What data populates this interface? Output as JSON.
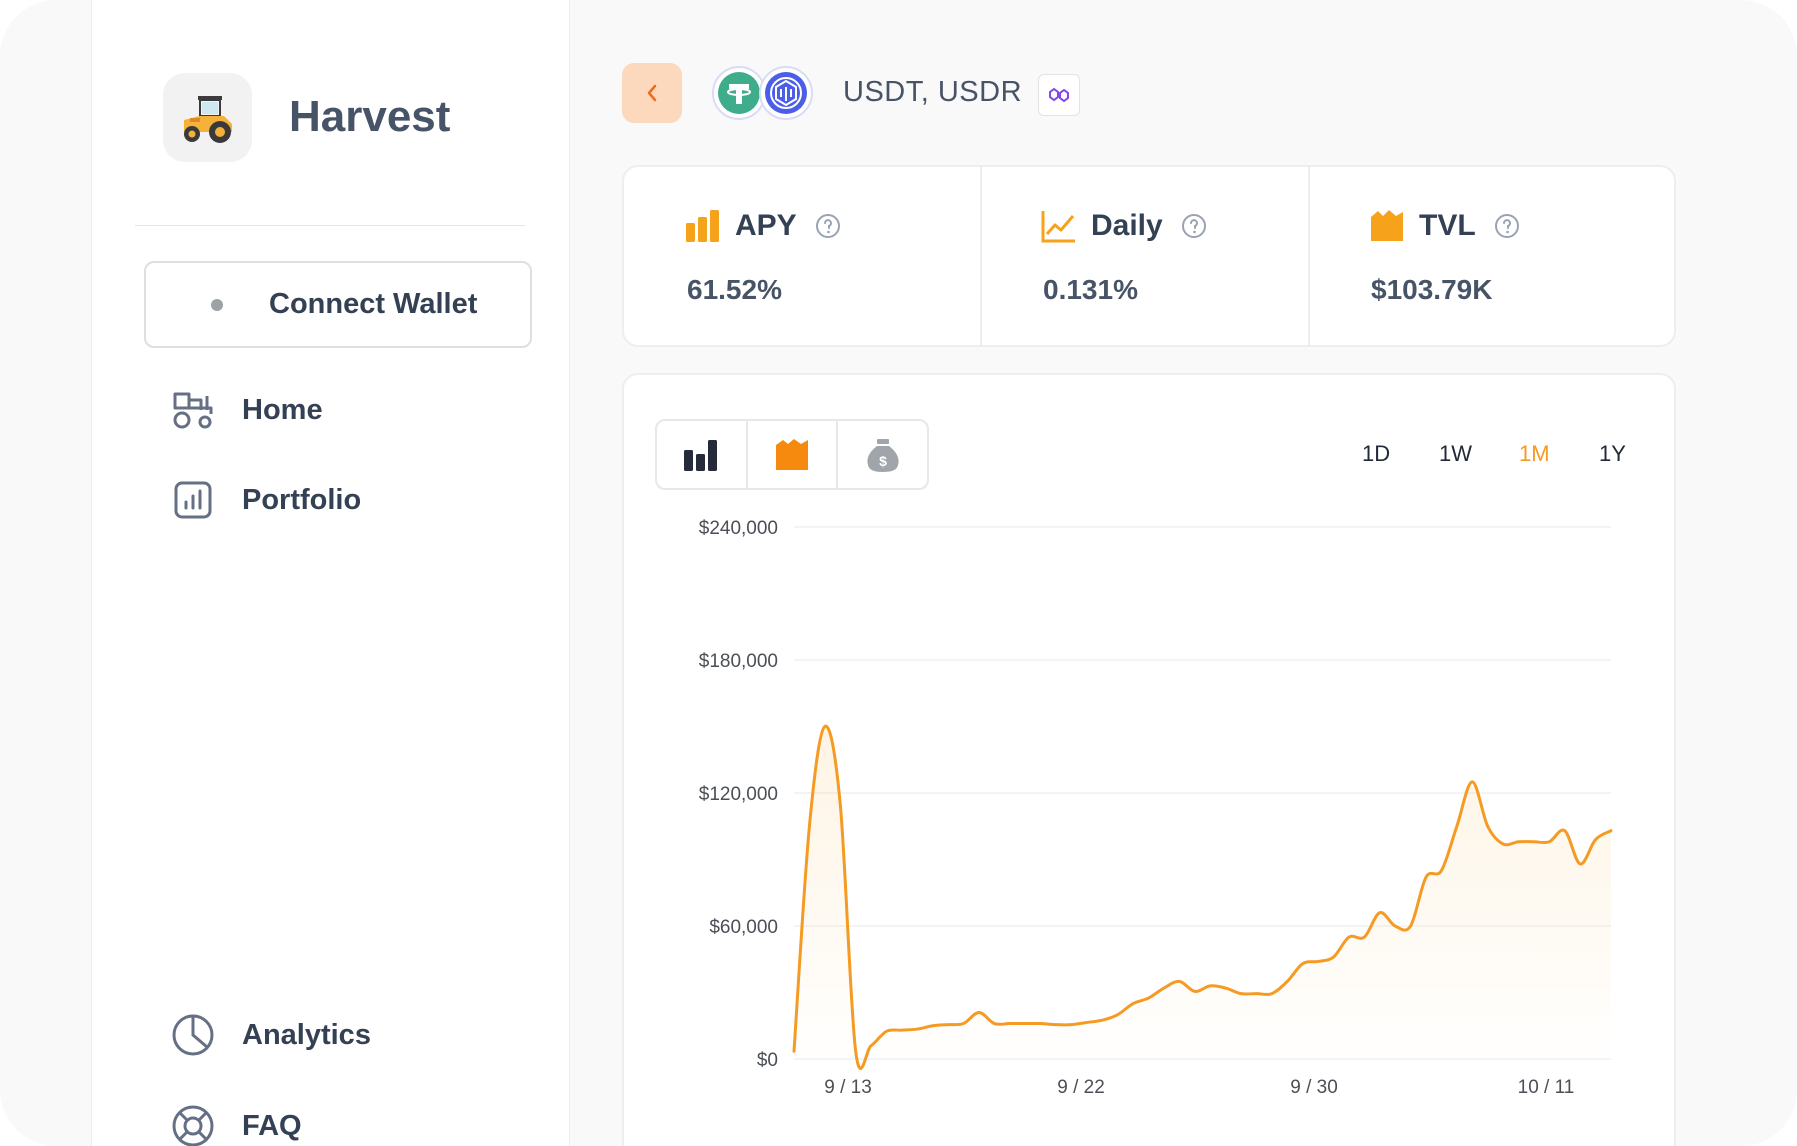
{
  "sidebar": {
    "brand": "Harvest",
    "connect_label": "Connect Wallet",
    "nav": [
      {
        "label": "Home",
        "icon": "tractor-icon"
      },
      {
        "label": "Portfolio",
        "icon": "bar-chart-icon"
      },
      {
        "label": "Analytics",
        "icon": "pie-chart-icon"
      },
      {
        "label": "FAQ",
        "icon": "lifebuoy-icon"
      }
    ]
  },
  "header": {
    "pair_label": "USDT, USDR",
    "tokens": [
      "USDT",
      "USDR"
    ],
    "chain_icon": "polygon-icon"
  },
  "stats": [
    {
      "label": "APY",
      "value": "61.52%",
      "icon": "bar-chart-icon"
    },
    {
      "label": "Daily",
      "value": "0.131%",
      "icon": "line-chart-icon"
    },
    {
      "label": "TVL",
      "value": "$103.79K",
      "icon": "wallet-icon"
    }
  ],
  "chart_controls": {
    "tabs": [
      "apy-tab-icon",
      "tvl-tab-icon",
      "money-bag-icon"
    ],
    "active_tab": 1,
    "ranges": [
      "1D",
      "1W",
      "1M",
      "1Y"
    ],
    "active_range": "1M"
  },
  "colors": {
    "accent": "#f59a23",
    "back_button": "#fcd8bd",
    "text_dark": "#344054"
  },
  "chart_data": {
    "type": "area",
    "y_ticks": [
      "$240,000",
      "$180,000",
      "$120,000",
      "$60,000",
      "$0"
    ],
    "x_ticks": [
      "9 / 13",
      "9 / 22",
      "9 / 30",
      "10 / 11"
    ],
    "ylim": [
      0,
      240000
    ],
    "grid": true,
    "series": [
      {
        "values": [
          3500,
          105000,
          150000,
          115000,
          3500,
          6000,
          12500,
          13000,
          13500,
          15000,
          15500,
          16000,
          21000,
          16000,
          16000,
          16000,
          16000,
          15500,
          15500,
          16500,
          17500,
          20000,
          25000,
          27500,
          32000,
          35000,
          30500,
          33000,
          32000,
          29500,
          29500,
          29500,
          35000,
          43000,
          44000,
          46000,
          55000,
          55000,
          66000,
          60000,
          60000,
          82000,
          85000,
          105000,
          125000,
          105000,
          97000,
          98000,
          98000,
          98000,
          103000,
          88000,
          99000,
          103000
        ]
      }
    ]
  }
}
